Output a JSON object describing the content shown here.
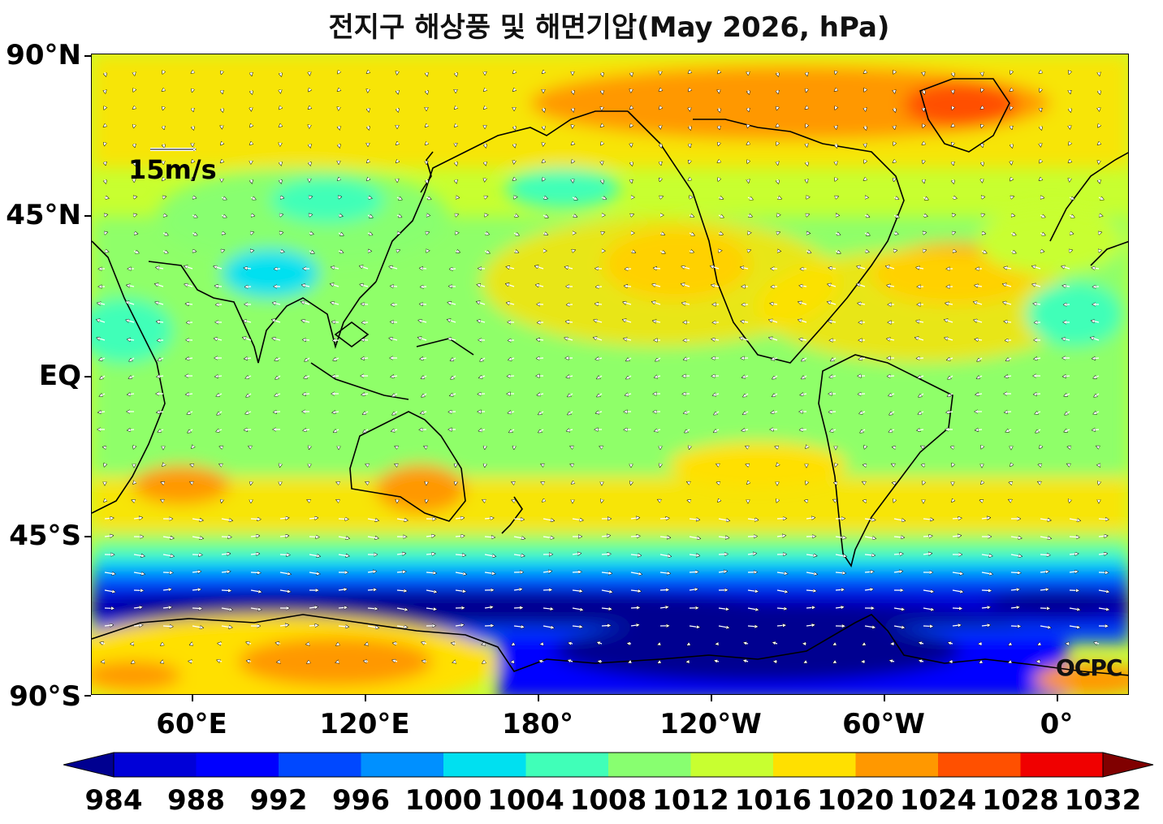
{
  "title": "전지구 해상풍 및 해면기압(May 2026, hPa)",
  "map": {
    "projection": "equirectangular, centered on 140°W (20°E to 20°E)",
    "lat_axis": [
      "90°N",
      "45°N",
      "EQ",
      "45°S",
      "90°S"
    ],
    "lon_axis": [
      "60°E",
      "120°E",
      "180°",
      "120°W",
      "60°W",
      "0°"
    ],
    "reference_arrow_label": "15m/s",
    "credit": "OCPC",
    "features": [
      "coastlines",
      "filled sea-level pressure contours",
      "surface wind vectors (white arrows)"
    ]
  },
  "colorbar": {
    "levels": [
      "984",
      "988",
      "992",
      "996",
      "1000",
      "1004",
      "1008",
      "1012",
      "1016",
      "1020",
      "1024",
      "1028",
      "1032"
    ],
    "colors": [
      "#000090",
      "#0000d8",
      "#0000ff",
      "#0048ff",
      "#0090ff",
      "#00e0f0",
      "#40ffb8",
      "#88ff70",
      "#c8ff30",
      "#ffe000",
      "#ff9800",
      "#ff5000",
      "#f00000",
      "#800000"
    ],
    "units": "hPa"
  }
}
